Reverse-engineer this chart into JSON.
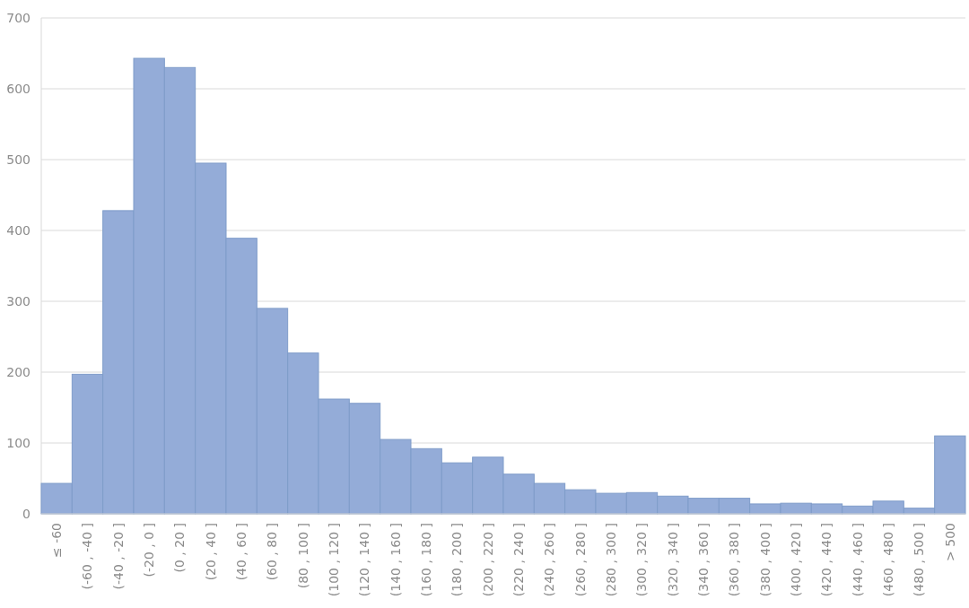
{
  "chart_data": {
    "type": "bar",
    "categories": [
      "≤ -60",
      "(-60 , -40 ]",
      "(-40 , -20 ]",
      "(-20 , 0 ]",
      "(0 , 20 ]",
      "(20 , 40 ]",
      "(40 , 60 ]",
      "(60 , 80 ]",
      "(80 , 100 ]",
      "(100 , 120 ]",
      "(120 , 140 ]",
      "(140 , 160 ]",
      "(160 , 180 ]",
      "(180 , 200 ]",
      "(200 , 220 ]",
      "(220 , 240 ]",
      "(240 , 260 ]",
      "(260 , 280 ]",
      "(280 , 300 ]",
      "(300 , 320 ]",
      "(320 , 340 ]",
      "(340 , 360 ]",
      "(360 , 380 ]",
      "(380 , 400 ]",
      "(400 , 420 ]",
      "(420 , 440 ]",
      "(440 , 460 ]",
      "(460 , 480 ]",
      "(480 , 500 ]",
      "> 500"
    ],
    "values": [
      43,
      197,
      428,
      643,
      630,
      495,
      389,
      290,
      227,
      162,
      156,
      105,
      92,
      72,
      80,
      56,
      43,
      34,
      29,
      30,
      25,
      22,
      22,
      14,
      15,
      14,
      11,
      18,
      8,
      110
    ],
    "color": "#94acd8",
    "ylim": [
      0,
      700
    ],
    "yticks": [
      0,
      100,
      200,
      300,
      400,
      500,
      600,
      700
    ],
    "grid": "y"
  }
}
